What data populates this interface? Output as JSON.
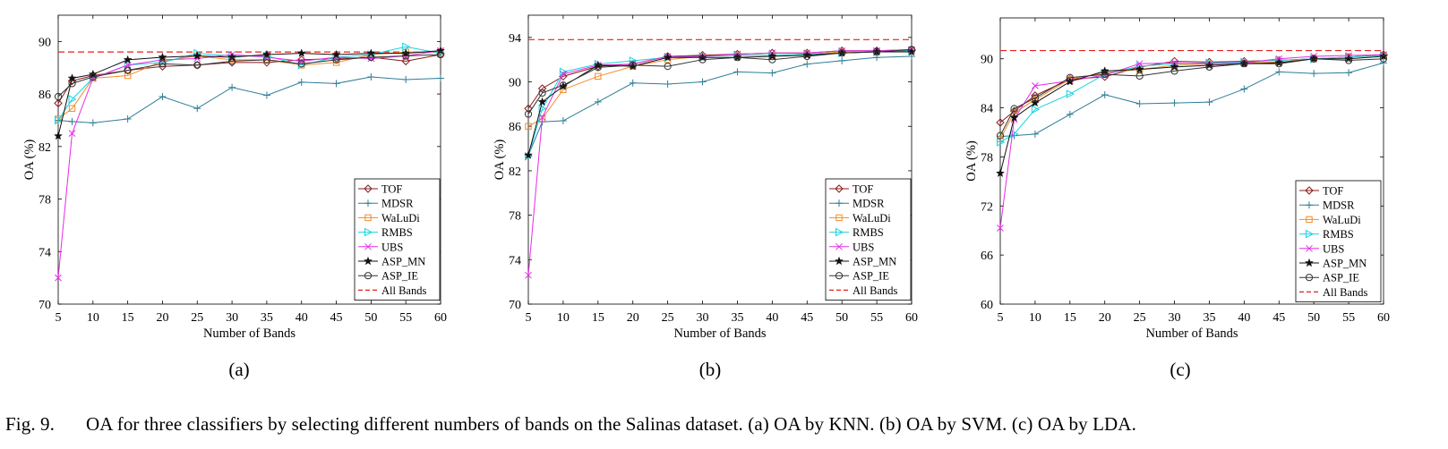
{
  "figure_label": "Fig. 9.",
  "caption": "OA for three classifiers by selecting different numbers of bands on the Salinas dataset. (a) OA by KNN. (b) OA by SVM. (c) OA by LDA.",
  "series_styles": [
    {
      "name": "TOF",
      "color": "#8B1A1A",
      "marker": "diamond"
    },
    {
      "name": "MDSR",
      "color": "#2E7D96",
      "marker": "plus"
    },
    {
      "name": "WaLuDi",
      "color": "#F28C28",
      "marker": "square"
    },
    {
      "name": "RMBS",
      "color": "#19D3E0",
      "marker": "triangle-right"
    },
    {
      "name": "UBS",
      "color": "#E62DE6",
      "marker": "x"
    },
    {
      "name": "ASP_MN",
      "color": "#111111",
      "marker": "star"
    },
    {
      "name": "ASP_IE",
      "color": "#333333",
      "marker": "circle"
    },
    {
      "name": "All Bands",
      "color": "#E32020",
      "marker": "dashed-line"
    }
  ],
  "chart_data": [
    {
      "type": "line",
      "subfigure_label": "(a)",
      "xlabel": "Number of Bands",
      "ylabel": "OA (%)",
      "x": [
        5,
        7,
        10,
        15,
        20,
        25,
        30,
        35,
        40,
        45,
        50,
        55,
        60
      ],
      "xticks": [
        "5",
        "10",
        "15",
        "20",
        "25",
        "30",
        "35",
        "40",
        "45",
        "50",
        "55",
        "60"
      ],
      "yticks": [
        "70",
        "74",
        "78",
        "82",
        "86",
        "90"
      ],
      "ylim": [
        70,
        92
      ],
      "legend_position": "bottom-right",
      "series": [
        {
          "name": "TOF",
          "values": [
            85.3,
            87.0,
            87.4,
            87.8,
            88.1,
            88.2,
            88.4,
            88.4,
            88.6,
            88.7,
            88.8,
            88.5,
            89.0
          ]
        },
        {
          "name": "MDSR",
          "values": [
            84.0,
            83.9,
            83.8,
            84.1,
            85.8,
            84.9,
            86.5,
            85.9,
            86.9,
            86.8,
            87.3,
            87.1,
            87.2
          ]
        },
        {
          "name": "WaLuDi",
          "values": [
            84.1,
            84.9,
            87.2,
            87.4,
            88.5,
            88.9,
            88.6,
            88.6,
            88.2,
            88.4,
            89.0,
            89.2,
            89.2
          ]
        },
        {
          "name": "RMBS",
          "values": [
            84.0,
            85.6,
            87.2,
            88.2,
            88.4,
            89.1,
            88.9,
            88.9,
            88.2,
            88.8,
            89.0,
            89.6,
            89.1
          ]
        },
        {
          "name": "UBS",
          "values": [
            72.0,
            83.0,
            87.2,
            88.2,
            88.6,
            88.7,
            89.0,
            88.8,
            88.5,
            88.8,
            88.7,
            88.9,
            89.3
          ]
        },
        {
          "name": "ASP_MN",
          "values": [
            82.8,
            87.2,
            87.5,
            88.6,
            88.8,
            88.9,
            88.8,
            89.0,
            89.1,
            89.0,
            89.1,
            89.1,
            89.3
          ]
        },
        {
          "name": "ASP_IE",
          "values": [
            85.8,
            86.8,
            87.3,
            87.8,
            88.3,
            88.2,
            88.5,
            88.6,
            88.3,
            88.6,
            88.8,
            88.9,
            89.0
          ]
        }
      ],
      "reference": {
        "name": "All Bands",
        "value": 89.2
      }
    },
    {
      "type": "line",
      "subfigure_label": "(b)",
      "xlabel": "Number of Bands",
      "ylabel": "OA (%)",
      "x": [
        5,
        7,
        10,
        15,
        20,
        25,
        30,
        35,
        40,
        45,
        50,
        55,
        60
      ],
      "xticks": [
        "5",
        "10",
        "15",
        "20",
        "25",
        "30",
        "35",
        "40",
        "45",
        "50",
        "55",
        "60"
      ],
      "yticks": [
        "70",
        "74",
        "78",
        "82",
        "86",
        "90",
        "94"
      ],
      "ylim": [
        70,
        96
      ],
      "legend_position": "bottom-right",
      "series": [
        {
          "name": "TOF",
          "values": [
            87.6,
            89.4,
            90.5,
            91.4,
            91.6,
            92.3,
            92.4,
            92.5,
            92.6,
            92.6,
            92.8,
            92.8,
            92.9
          ]
        },
        {
          "name": "MDSR",
          "values": [
            83.4,
            86.4,
            86.5,
            88.2,
            89.9,
            89.8,
            90.0,
            90.9,
            90.8,
            91.6,
            91.9,
            92.2,
            92.3
          ]
        },
        {
          "name": "WaLuDi",
          "values": [
            86.0,
            86.7,
            89.3,
            90.5,
            91.4,
            92.0,
            92.3,
            92.4,
            92.4,
            92.5,
            92.7,
            92.7,
            92.8
          ]
        },
        {
          "name": "RMBS",
          "values": [
            83.3,
            87.6,
            90.9,
            91.6,
            91.9,
            92.2,
            92.3,
            92.4,
            92.4,
            92.5,
            92.6,
            92.7,
            92.8
          ]
        },
        {
          "name": "UBS",
          "values": [
            72.6,
            86.8,
            90.7,
            91.5,
            91.6,
            92.3,
            92.3,
            92.5,
            92.6,
            92.6,
            92.8,
            92.8,
            92.9
          ]
        },
        {
          "name": "ASP_MN",
          "values": [
            83.4,
            88.2,
            89.6,
            91.5,
            91.4,
            92.2,
            92.2,
            92.2,
            92.3,
            92.4,
            92.6,
            92.7,
            92.7
          ]
        },
        {
          "name": "ASP_IE",
          "values": [
            87.1,
            89.0,
            89.7,
            91.3,
            91.5,
            91.4,
            92.0,
            92.2,
            92.0,
            92.3,
            92.6,
            92.7,
            92.9
          ]
        }
      ],
      "reference": {
        "name": "All Bands",
        "value": 93.8
      }
    },
    {
      "type": "line",
      "subfigure_label": "(c)",
      "xlabel": "Number of Bands",
      "ylabel": "OA (%)",
      "x": [
        5,
        7,
        10,
        15,
        20,
        25,
        30,
        35,
        40,
        45,
        50,
        55,
        60
      ],
      "xticks": [
        "5",
        "10",
        "15",
        "20",
        "25",
        "30",
        "35",
        "40",
        "45",
        "50",
        "55",
        "60"
      ],
      "yticks": [
        "60",
        "66",
        "72",
        "78",
        "84",
        "90"
      ],
      "ylim": [
        60,
        95
      ],
      "legend_position": "bottom-right",
      "series": [
        {
          "name": "TOF",
          "values": [
            82.2,
            83.6,
            85.5,
            87.5,
            87.8,
            89.0,
            89.7,
            89.6,
            89.7,
            89.8,
            90.0,
            90.2,
            90.5
          ]
        },
        {
          "name": "MDSR",
          "values": [
            80.5,
            80.6,
            80.8,
            83.2,
            85.6,
            84.5,
            84.6,
            84.7,
            86.3,
            88.4,
            88.2,
            88.3,
            89.5
          ]
        },
        {
          "name": "WaLuDi",
          "values": [
            80.2,
            83.4,
            85.0,
            87.5,
            88.3,
            88.7,
            89.2,
            89.4,
            89.5,
            89.6,
            90.0,
            90.2,
            90.4
          ]
        },
        {
          "name": "RMBS",
          "values": [
            79.8,
            80.8,
            83.8,
            85.7,
            88.1,
            89.1,
            89.4,
            89.5,
            89.6,
            89.8,
            90.0,
            90.2,
            90.4
          ]
        },
        {
          "name": "UBS",
          "values": [
            69.3,
            82.6,
            86.7,
            87.3,
            88.0,
            89.4,
            89.5,
            89.4,
            89.5,
            90.0,
            90.3,
            90.4,
            90.5
          ]
        },
        {
          "name": "ASP_MN",
          "values": [
            76.0,
            82.8,
            84.6,
            87.2,
            88.5,
            88.7,
            89.0,
            89.2,
            89.4,
            89.5,
            90.0,
            90.0,
            90.3
          ]
        },
        {
          "name": "ASP_IE",
          "values": [
            80.6,
            83.9,
            85.2,
            87.7,
            88.1,
            87.9,
            88.5,
            89.0,
            89.4,
            89.4,
            90.0,
            89.8,
            90.0
          ]
        }
      ],
      "reference": {
        "name": "All Bands",
        "value": 91.0
      }
    }
  ]
}
